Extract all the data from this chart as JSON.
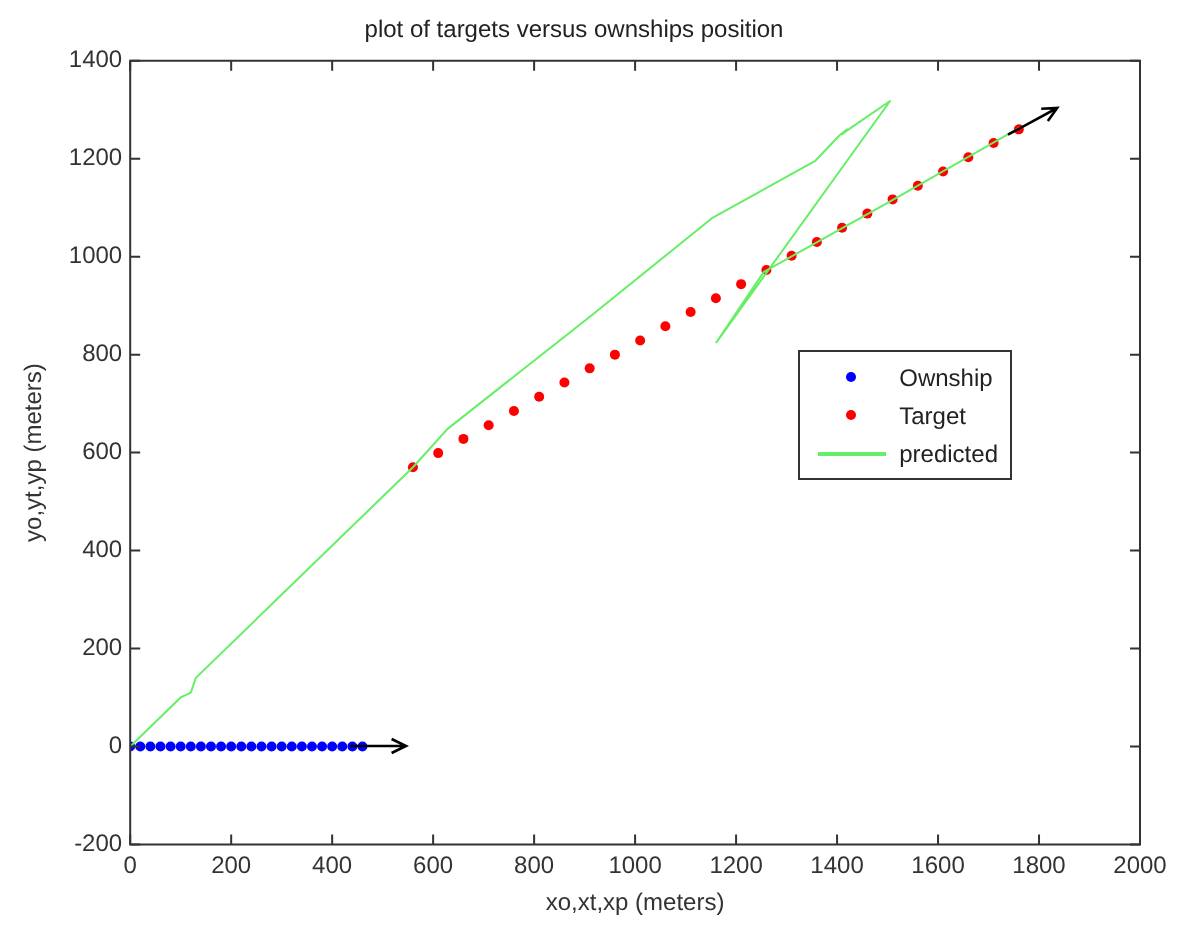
{
  "chart_data": {
    "type": "scatter",
    "title": "plot of targets versus ownships position",
    "xlabel": "xo,xt,xp (meters)",
    "ylabel": "yo,yt,yp (meters)",
    "xlim": [
      0,
      2000
    ],
    "xticks": [
      0,
      200,
      400,
      600,
      800,
      1000,
      1200,
      1400,
      1600,
      1800,
      2000
    ],
    "ylim": [
      -200,
      1400
    ],
    "yticks": [
      -200,
      0,
      200,
      400,
      600,
      800,
      1000,
      1200,
      1400
    ],
    "grid": false,
    "legend": "right",
    "series": [
      {
        "name": "Ownship",
        "type": "scatter",
        "marker": "circle",
        "color": "#0000ff",
        "x": [
          0,
          20,
          40,
          60,
          80,
          100,
          120,
          140,
          160,
          180,
          200,
          220,
          240,
          260,
          280,
          300,
          320,
          340,
          360,
          380,
          400,
          420,
          440,
          460
        ],
        "values": [
          0,
          0,
          0,
          0,
          0,
          0,
          0,
          0,
          0,
          0,
          0,
          0,
          0,
          0,
          0,
          0,
          0,
          0,
          0,
          0,
          0,
          0,
          0,
          0
        ]
      },
      {
        "name": "Target",
        "type": "scatter",
        "marker": "circle",
        "color": "#ff0000",
        "x": [
          560,
          610,
          660,
          710,
          760,
          810,
          860,
          910,
          960,
          1010,
          1060,
          1110,
          1160,
          1210,
          1260,
          1310,
          1360,
          1410,
          1460,
          1510,
          1560,
          1610,
          1660,
          1710,
          1760
        ],
        "values": [
          570,
          599,
          628,
          656,
          685,
          714,
          743,
          772,
          800,
          829,
          858,
          887,
          915,
          944,
          973,
          1002,
          1030,
          1059,
          1088,
          1117,
          1145,
          1174,
          1203,
          1232,
          1260
        ]
      },
      {
        "name": "predicted",
        "type": "line",
        "marker": "none",
        "line_style": "solid",
        "color": "#66ee66",
        "x": [
          0,
          100,
          120,
          130,
          560,
          628,
          911,
          1154,
          1356,
          1405,
          1420,
          1410,
          1430,
          1505,
          1161,
          1255,
          1500,
          1761
        ],
        "values": [
          0,
          100,
          110,
          140,
          570,
          648,
          878,
          1080,
          1195,
          1248,
          1260,
          1250,
          1265,
          1318,
          825,
          969,
          1110,
          1263
        ]
      }
    ]
  }
}
